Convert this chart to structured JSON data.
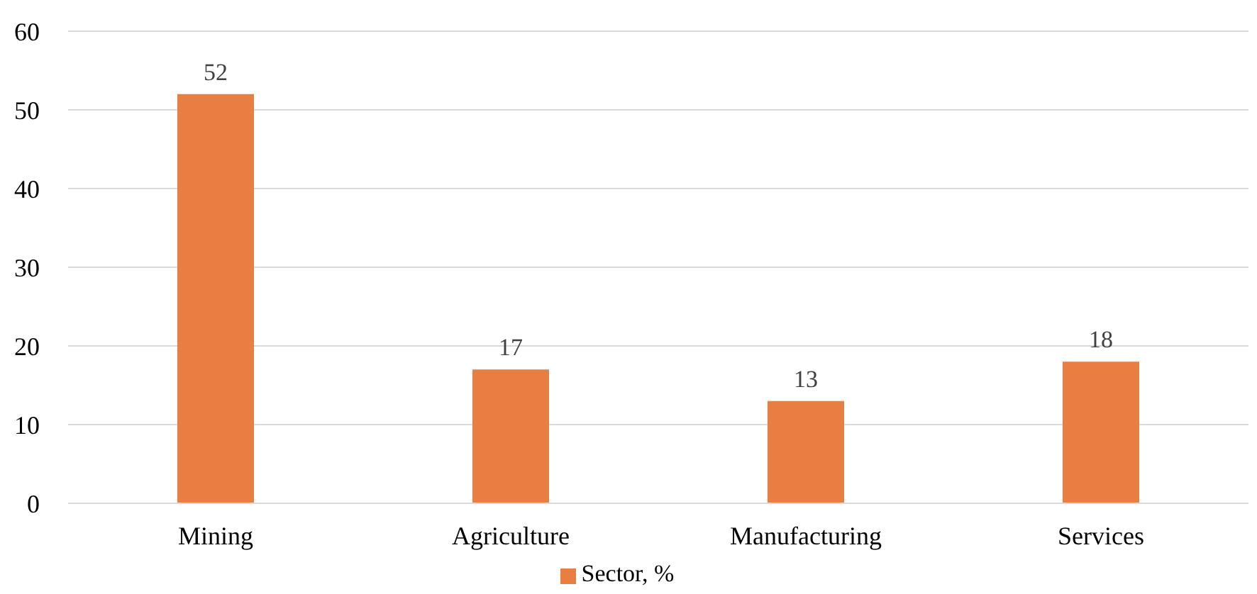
{
  "chart_data": {
    "type": "bar",
    "categories": [
      "Mining",
      "Agriculture",
      "Manufacturing",
      "Services"
    ],
    "series": [
      {
        "name": "Sector, %",
        "color": "#e97e43",
        "values": [
          52,
          17,
          13,
          18
        ]
      }
    ],
    "ylim": [
      0,
      60
    ],
    "yticks": [
      0,
      10,
      20,
      30,
      40,
      50,
      60
    ],
    "grid": "y",
    "legend": "bottom",
    "data_labels": true
  }
}
